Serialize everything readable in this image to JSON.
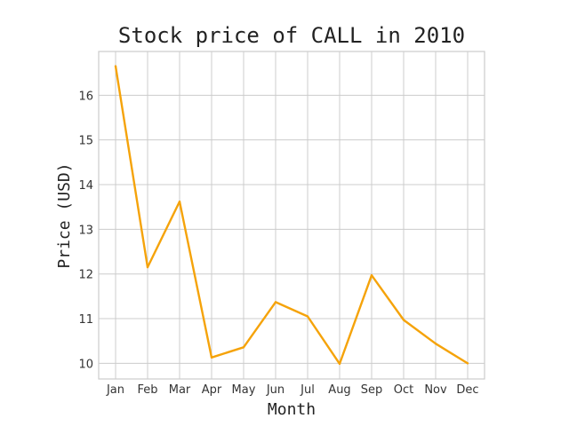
{
  "chart_data": {
    "type": "line",
    "title": "Stock price of CALL in 2010",
    "xlabel": "Month",
    "ylabel": "Price (USD)",
    "categories": [
      "Jan",
      "Feb",
      "Mar",
      "Apr",
      "May",
      "Jun",
      "Jul",
      "Aug",
      "Sep",
      "Oct",
      "Nov",
      "Dec"
    ],
    "series": [
      {
        "values": [
          16.65,
          12.15,
          13.62,
          10.13,
          10.36,
          11.37,
          11.05,
          9.99,
          11.97,
          10.97,
          10.44,
          10.0
        ],
        "color": "#f5a30a"
      }
    ],
    "yticks": [
      10,
      11,
      12,
      13,
      14,
      15,
      16
    ],
    "ylim": [
      9.65,
      16.98
    ],
    "grid": true,
    "legend": "none"
  }
}
